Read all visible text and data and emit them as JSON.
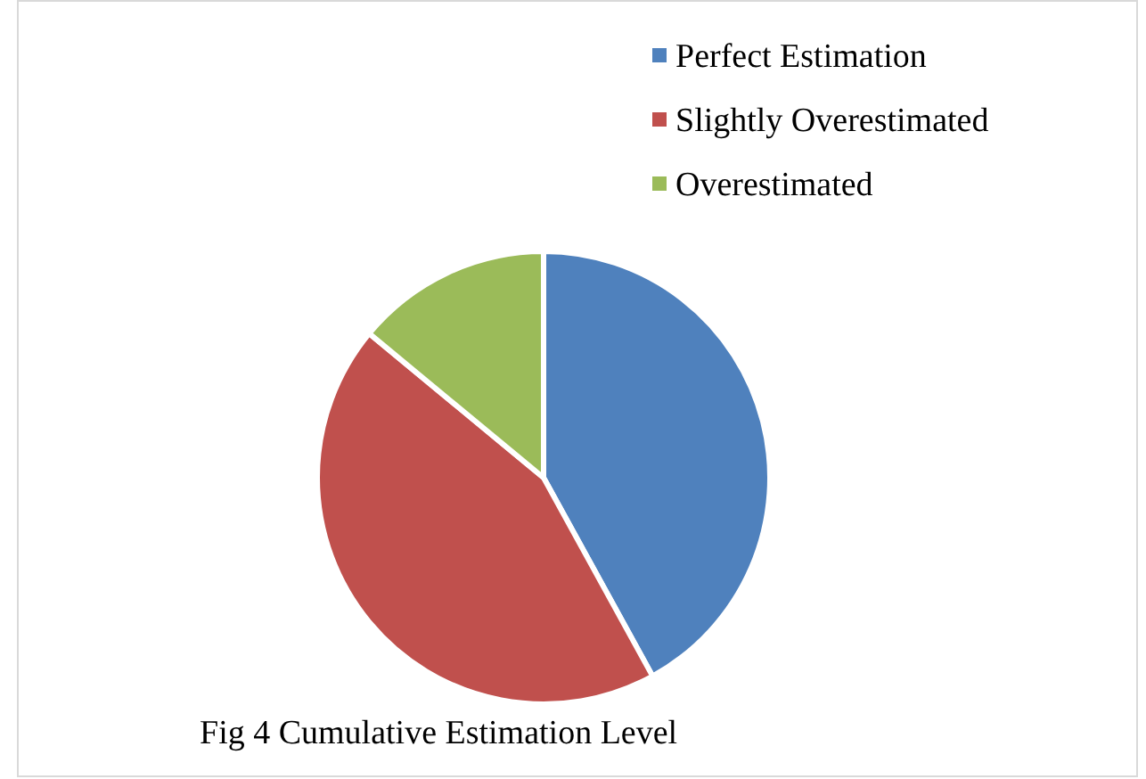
{
  "chart_data": {
    "type": "pie",
    "title": "Fig 4 Cumulative Estimation Level",
    "categories": [
      "Perfect Estimation",
      "Slightly Overestimated",
      "Overestimated"
    ],
    "values": [
      42,
      44,
      14
    ],
    "colors": [
      "#4f81bd",
      "#c0504d",
      "#9bbb59"
    ],
    "legend": "top right"
  }
}
